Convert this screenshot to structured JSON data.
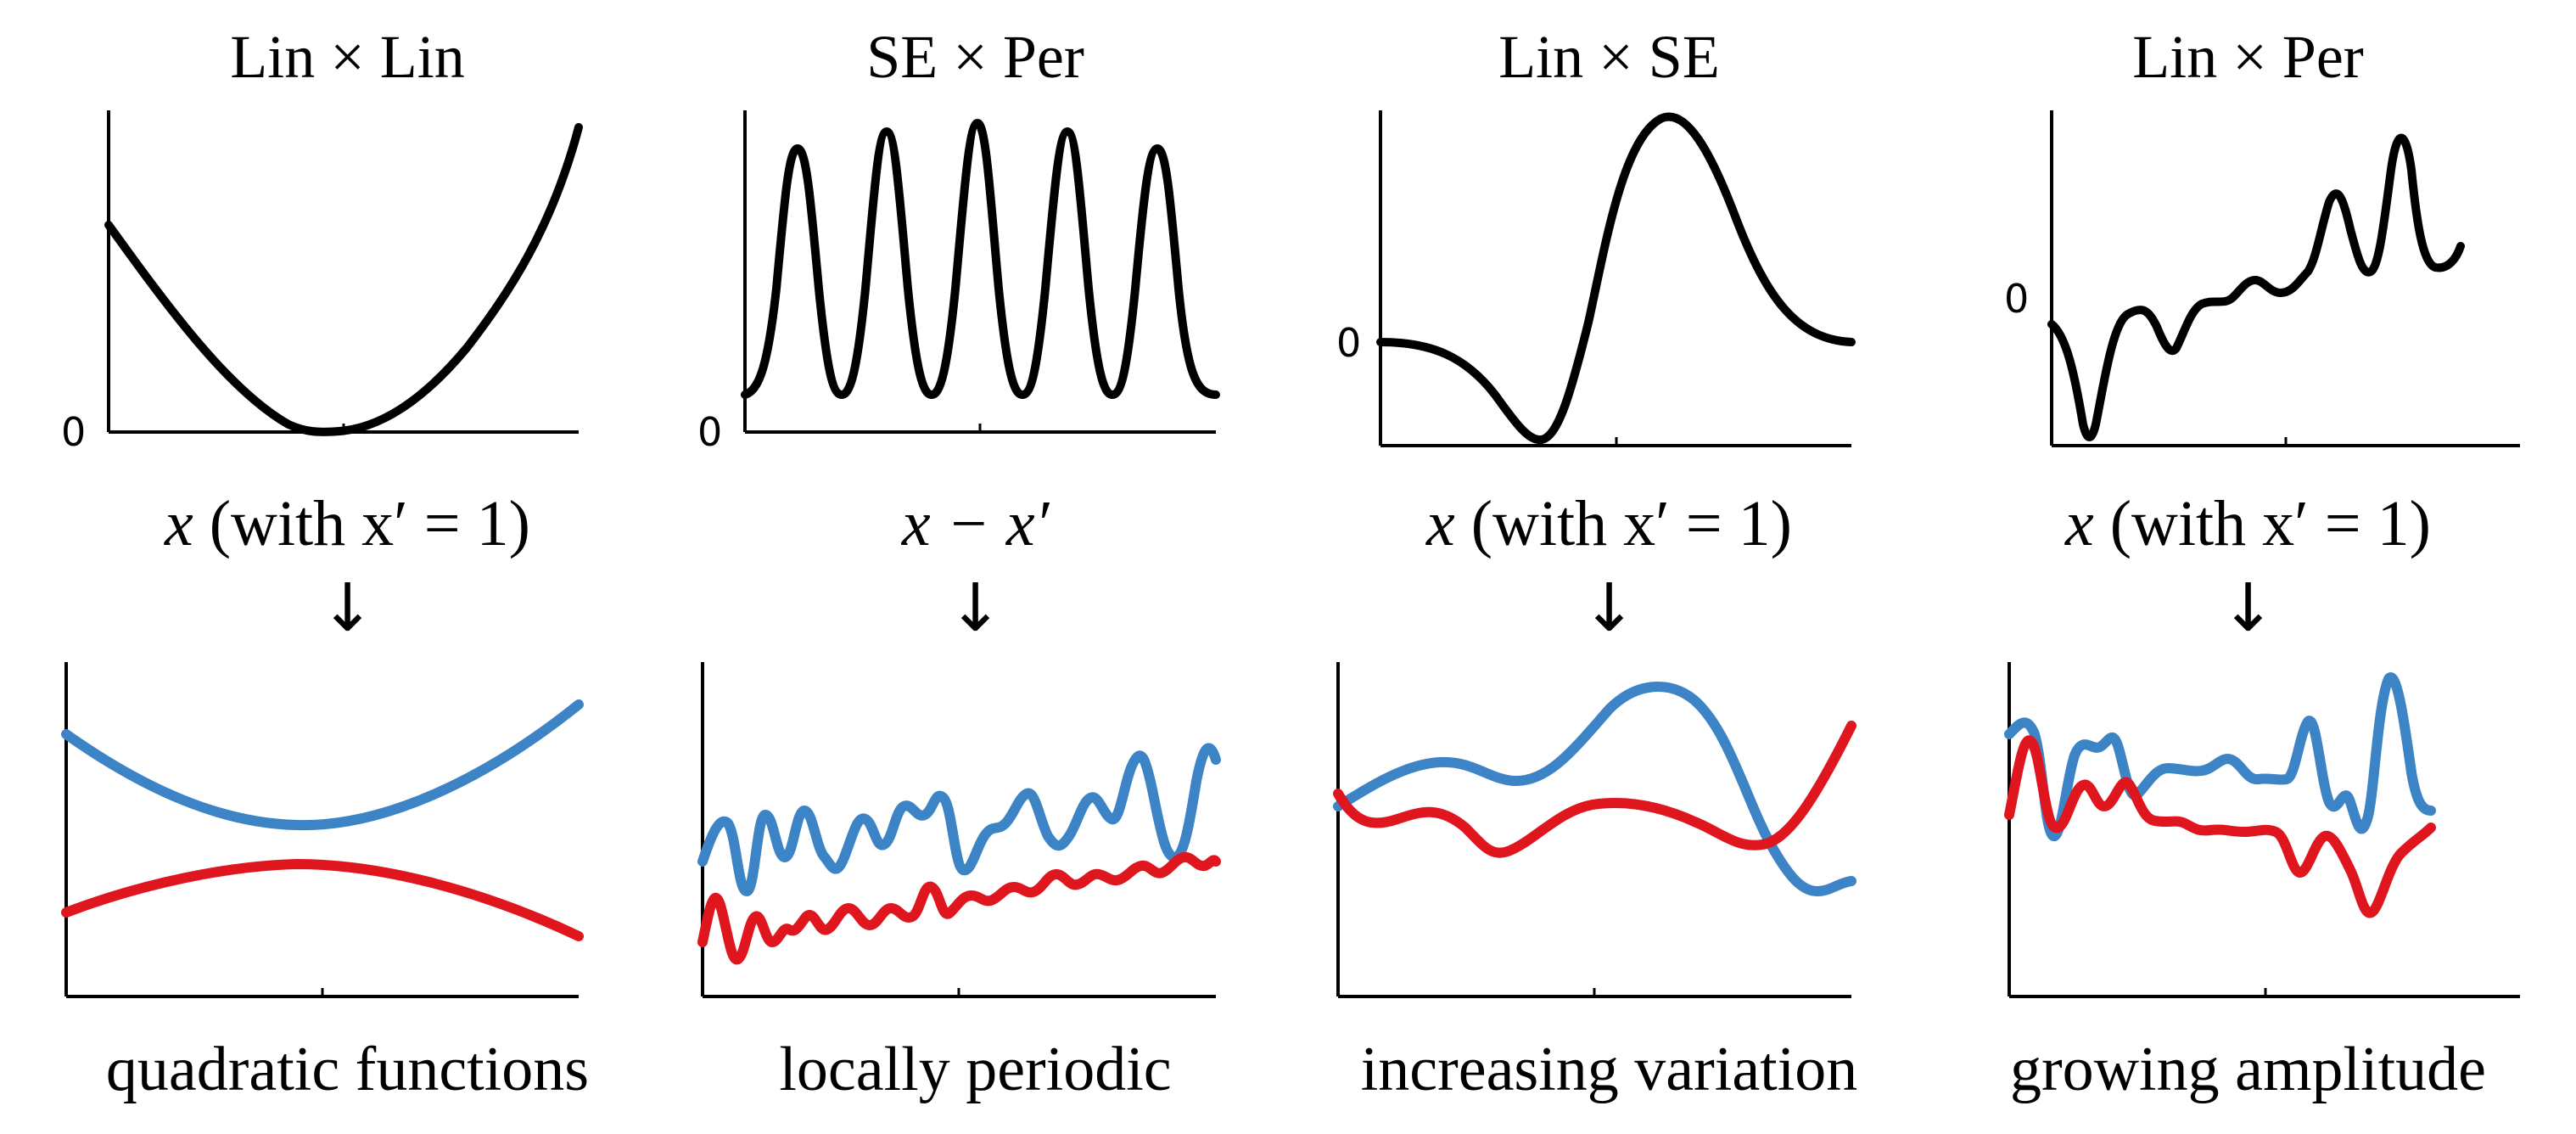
{
  "colors": {
    "sample_1": "#3d84c6",
    "sample_2": "#e0161f",
    "kernel": "#000000"
  },
  "panels": [
    {
      "title": "Lin × Lin",
      "xlabel_var": "x",
      "xlabel_rest": " (with x′ = 1)",
      "arrow": "↓",
      "caption": "quadratic functions",
      "zero_label": "0",
      "zero_level": 0.0,
      "kernel_shape": "parabola"
    },
    {
      "title": "SE × Per",
      "xlabel_var": "x − x′",
      "xlabel_rest": "",
      "arrow": "↓",
      "caption": "locally periodic",
      "zero_label": "0",
      "zero_level": 0.0,
      "kernel_shape": "periodic-peaks"
    },
    {
      "title": "Lin × SE",
      "xlabel_var": "x",
      "xlabel_rest": " (with x′ = 1)",
      "arrow": "↓",
      "caption": "increasing variation",
      "zero_label": "0",
      "zero_level": 0.33,
      "kernel_shape": "dip-then-peak"
    },
    {
      "title": "Lin × Per",
      "xlabel_var": "x",
      "xlabel_rest": " (with x′ = 1)",
      "arrow": "↓",
      "caption": "growing amplitude",
      "zero_label": "0",
      "zero_level": 0.55,
      "kernel_shape": "growing-oscillation"
    }
  ]
}
